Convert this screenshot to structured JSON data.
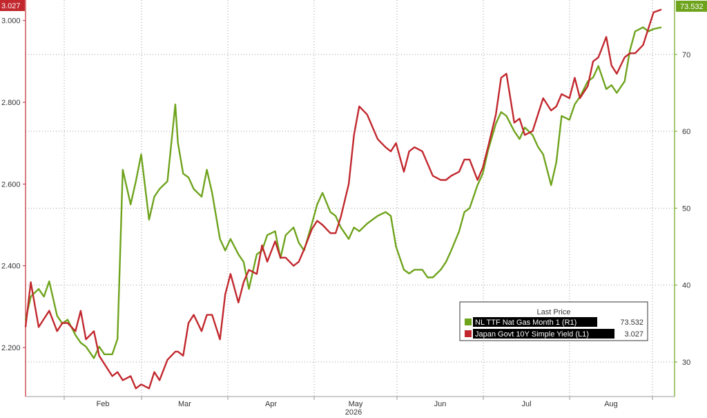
{
  "chart_data": {
    "type": "line",
    "title": "",
    "xlabel": "2026",
    "x_tick_labels": [
      "Feb",
      "Mar",
      "Apr",
      "May",
      "Jun",
      "Jul",
      "Aug"
    ],
    "x_range": [
      "2026-01-01",
      "2026-08-31"
    ],
    "y_left": {
      "label": "",
      "range": [
        2.08,
        3.03
      ],
      "ticks": [
        "2.200",
        "2.400",
        "2.600",
        "2.800",
        "3.000"
      ]
    },
    "y_right": {
      "label": "",
      "range": [
        25.5,
        76
      ],
      "ticks": [
        "30",
        "40",
        "50",
        "60",
        "70"
      ]
    },
    "grid": true,
    "legend_position": "bottom-right",
    "legend_title": "Last Price",
    "series": [
      {
        "name": "NL TTF Nat Gas Month 1  (R1)",
        "axis": "right",
        "color": "#6ea31c",
        "last_value": "73.532",
        "x": [
          "2026-01-01",
          "2026-01-03",
          "2026-01-06",
          "2026-01-08",
          "2026-01-10",
          "2026-01-13",
          "2026-01-15",
          "2026-01-17",
          "2026-01-20",
          "2026-01-22",
          "2026-01-24",
          "2026-01-27",
          "2026-01-29",
          "2026-01-31",
          "2026-02-03",
          "2026-02-05",
          "2026-02-07",
          "2026-02-10",
          "2026-02-12",
          "2026-02-14",
          "2026-02-17",
          "2026-02-19",
          "2026-02-21",
          "2026-02-24",
          "2026-02-27",
          "2026-02-28",
          "2026-03-02",
          "2026-03-04",
          "2026-03-06",
          "2026-03-09",
          "2026-03-11",
          "2026-03-13",
          "2026-03-16",
          "2026-03-18",
          "2026-03-20",
          "2026-03-23",
          "2026-03-25",
          "2026-03-27",
          "2026-03-30",
          "2026-04-01",
          "2026-04-03",
          "2026-04-06",
          "2026-04-08",
          "2026-04-10",
          "2026-04-13",
          "2026-04-15",
          "2026-04-17",
          "2026-04-20",
          "2026-04-22",
          "2026-04-24",
          "2026-04-27",
          "2026-04-29",
          "2026-05-01",
          "2026-05-04",
          "2026-05-06",
          "2026-05-08",
          "2026-05-11",
          "2026-05-13",
          "2026-05-15",
          "2026-05-18",
          "2026-05-20",
          "2026-05-22",
          "2026-05-25",
          "2026-05-27",
          "2026-05-29",
          "2026-06-01",
          "2026-06-03",
          "2026-06-05",
          "2026-06-08",
          "2026-06-10",
          "2026-06-12",
          "2026-06-15",
          "2026-06-17",
          "2026-06-19",
          "2026-06-22",
          "2026-06-24",
          "2026-06-26",
          "2026-06-29",
          "2026-07-01",
          "2026-07-03",
          "2026-07-06",
          "2026-07-08",
          "2026-07-10",
          "2026-07-13",
          "2026-07-15",
          "2026-07-17",
          "2026-07-20",
          "2026-07-22",
          "2026-07-24",
          "2026-07-27",
          "2026-07-29",
          "2026-07-31",
          "2026-08-03",
          "2026-08-05",
          "2026-08-07",
          "2026-08-10",
          "2026-08-12",
          "2026-08-14",
          "2026-08-17",
          "2026-08-19",
          "2026-08-21",
          "2026-08-24",
          "2026-08-26",
          "2026-08-28",
          "2026-08-31"
        ],
        "values": [
          35.5,
          38.5,
          39.5,
          38.5,
          40.5,
          36.0,
          35.0,
          35.5,
          33.5,
          32.5,
          32.0,
          30.5,
          32.0,
          31.0,
          31.0,
          33.0,
          55.0,
          50.5,
          53.5,
          57.0,
          48.5,
          51.5,
          52.5,
          53.5,
          63.5,
          58.5,
          54.5,
          54.0,
          52.5,
          51.5,
          55.0,
          52.0,
          46.0,
          44.5,
          46.0,
          44.0,
          43.0,
          39.5,
          44.0,
          44.5,
          46.5,
          47.0,
          43.5,
          46.5,
          47.5,
          45.5,
          44.5,
          48.0,
          50.5,
          52.0,
          49.5,
          49.0,
          47.5,
          46.0,
          47.5,
          47.0,
          48.0,
          48.5,
          49.0,
          49.5,
          49.0,
          45.0,
          42.0,
          41.5,
          42.0,
          42.0,
          41.0,
          41.0,
          42.0,
          43.0,
          44.5,
          47.0,
          49.5,
          50.0,
          53.0,
          54.5,
          57.5,
          61.0,
          62.5,
          62.0,
          60.0,
          59.0,
          60.5,
          59.5,
          58.0,
          57.0,
          53.0,
          56.0,
          62.0,
          61.5,
          63.5,
          64.5,
          66.5,
          67.0,
          68.5,
          65.5,
          66.0,
          65.0,
          66.5,
          70.5,
          73.0,
          73.532,
          73.0,
          73.3,
          73.532
        ]
      },
      {
        "name": "Japan Govt 10Y Simple Yield  (L1)",
        "axis": "left",
        "color": "#c1272d",
        "last_value": "3.027",
        "x": [
          "2026-01-01",
          "2026-01-03",
          "2026-01-06",
          "2026-01-08",
          "2026-01-10",
          "2026-01-13",
          "2026-01-15",
          "2026-01-17",
          "2026-01-20",
          "2026-01-22",
          "2026-01-24",
          "2026-01-27",
          "2026-01-29",
          "2026-01-31",
          "2026-02-03",
          "2026-02-05",
          "2026-02-07",
          "2026-02-10",
          "2026-02-12",
          "2026-02-14",
          "2026-02-17",
          "2026-02-19",
          "2026-02-21",
          "2026-02-24",
          "2026-02-27",
          "2026-02-28",
          "2026-03-02",
          "2026-03-04",
          "2026-03-06",
          "2026-03-09",
          "2026-03-11",
          "2026-03-13",
          "2026-03-16",
          "2026-03-18",
          "2026-03-20",
          "2026-03-23",
          "2026-03-25",
          "2026-03-27",
          "2026-03-30",
          "2026-04-01",
          "2026-04-03",
          "2026-04-06",
          "2026-04-08",
          "2026-04-10",
          "2026-04-13",
          "2026-04-15",
          "2026-04-17",
          "2026-04-20",
          "2026-04-22",
          "2026-04-24",
          "2026-04-27",
          "2026-04-29",
          "2026-05-01",
          "2026-05-04",
          "2026-05-06",
          "2026-05-08",
          "2026-05-11",
          "2026-05-13",
          "2026-05-15",
          "2026-05-18",
          "2026-05-20",
          "2026-05-22",
          "2026-05-25",
          "2026-05-27",
          "2026-05-29",
          "2026-06-01",
          "2026-06-03",
          "2026-06-05",
          "2026-06-08",
          "2026-06-10",
          "2026-06-12",
          "2026-06-15",
          "2026-06-17",
          "2026-06-19",
          "2026-06-22",
          "2026-06-24",
          "2026-06-26",
          "2026-06-29",
          "2026-07-01",
          "2026-07-03",
          "2026-07-06",
          "2026-07-08",
          "2026-07-10",
          "2026-07-13",
          "2026-07-15",
          "2026-07-17",
          "2026-07-20",
          "2026-07-22",
          "2026-07-24",
          "2026-07-27",
          "2026-07-29",
          "2026-07-31",
          "2026-08-03",
          "2026-08-05",
          "2026-08-07",
          "2026-08-10",
          "2026-08-12",
          "2026-08-14",
          "2026-08-17",
          "2026-08-19",
          "2026-08-21",
          "2026-08-24",
          "2026-08-26",
          "2026-08-28",
          "2026-08-31"
        ],
        "values": [
          2.25,
          2.36,
          2.25,
          2.27,
          2.29,
          2.24,
          2.26,
          2.26,
          2.24,
          2.29,
          2.22,
          2.24,
          2.18,
          2.16,
          2.13,
          2.14,
          2.12,
          2.13,
          2.1,
          2.11,
          2.1,
          2.14,
          2.12,
          2.17,
          2.19,
          2.19,
          2.18,
          2.26,
          2.28,
          2.24,
          2.28,
          2.28,
          2.22,
          2.33,
          2.38,
          2.31,
          2.36,
          2.39,
          2.38,
          2.45,
          2.41,
          2.46,
          2.42,
          2.42,
          2.4,
          2.41,
          2.44,
          2.49,
          2.51,
          2.5,
          2.48,
          2.48,
          2.52,
          2.6,
          2.72,
          2.79,
          2.77,
          2.74,
          2.71,
          2.69,
          2.68,
          2.7,
          2.63,
          2.68,
          2.69,
          2.68,
          2.65,
          2.62,
          2.61,
          2.61,
          2.62,
          2.63,
          2.66,
          2.66,
          2.61,
          2.64,
          2.69,
          2.77,
          2.86,
          2.87,
          2.75,
          2.76,
          2.72,
          2.73,
          2.77,
          2.81,
          2.78,
          2.79,
          2.82,
          2.81,
          2.86,
          2.81,
          2.84,
          2.9,
          2.91,
          2.96,
          2.89,
          2.87,
          2.91,
          2.92,
          2.92,
          2.94,
          2.98,
          3.02,
          3.027
        ]
      }
    ]
  }
}
